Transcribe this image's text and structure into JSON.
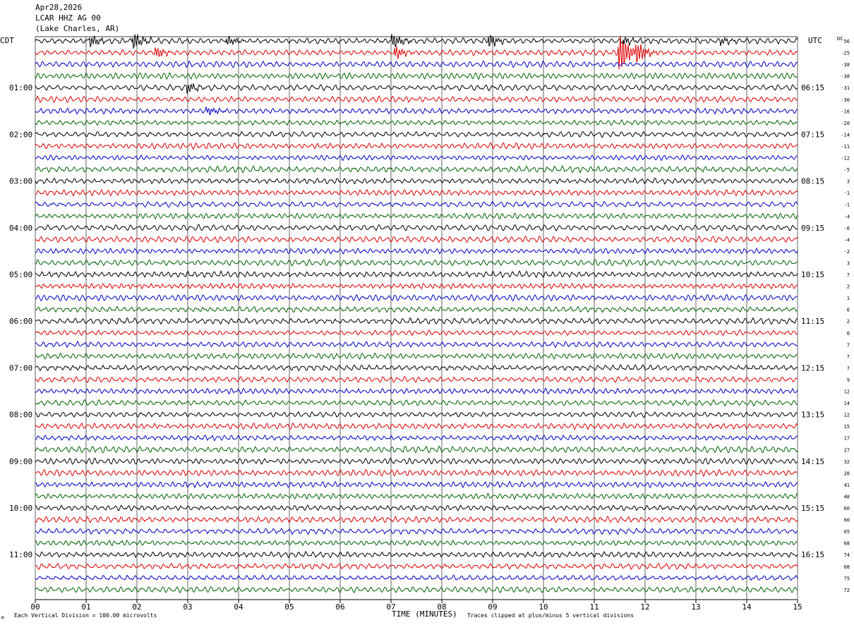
{
  "header": {
    "date": "Apr28,2026",
    "station": "LCAR HHZ AG 00",
    "location": "(Lake Charles, AR)"
  },
  "labels": {
    "left_tz": "CDT",
    "right_tz": "UTC",
    "dc_header": "DC",
    "xlabel": "TIME (MINUTES)",
    "footer_left": "Each Vertical Division = 100.00 microvolts",
    "footer_right": "Traces clipped at plus/minus 5 vertical divisions",
    "corner_mark": "M"
  },
  "colors": {
    "trace_cycle": [
      "#000000",
      "#e00000",
      "#0000c8",
      "#006400"
    ],
    "grid": "#000000",
    "background": "#ffffff"
  },
  "chart_data": {
    "type": "line",
    "subtype": "helicorder",
    "xlim": [
      0,
      15
    ],
    "x_ticks": [
      "00",
      "01",
      "02",
      "03",
      "04",
      "05",
      "06",
      "07",
      "08",
      "09",
      "10",
      "11",
      "12",
      "13",
      "14",
      "15"
    ],
    "xlabel": "TIME (MINUTES)",
    "rows": 48,
    "left_hour_labels": [
      {
        "row": 4,
        "label": "01:00"
      },
      {
        "row": 8,
        "label": "02:00"
      },
      {
        "row": 12,
        "label": "03:00"
      },
      {
        "row": 16,
        "label": "04:00"
      },
      {
        "row": 20,
        "label": "05:00"
      },
      {
        "row": 24,
        "label": "06:00"
      },
      {
        "row": 28,
        "label": "07:00"
      },
      {
        "row": 32,
        "label": "08:00"
      },
      {
        "row": 36,
        "label": "09:00"
      },
      {
        "row": 40,
        "label": "10:00"
      },
      {
        "row": 44,
        "label": "11:00"
      }
    ],
    "right_hour_labels": [
      {
        "row": 4,
        "label": "06:15"
      },
      {
        "row": 8,
        "label": "07:15"
      },
      {
        "row": 12,
        "label": "08:15"
      },
      {
        "row": 16,
        "label": "09:15"
      },
      {
        "row": 20,
        "label": "10:15"
      },
      {
        "row": 24,
        "label": "11:15"
      },
      {
        "row": 28,
        "label": "12:15"
      },
      {
        "row": 32,
        "label": "13:15"
      },
      {
        "row": 36,
        "label": "14:15"
      },
      {
        "row": 40,
        "label": "15:15"
      },
      {
        "row": 44,
        "label": "16:15"
      }
    ],
    "dc_offsets": [
      "56",
      "-25",
      "-38",
      "-38",
      "-31",
      "-30",
      "-16",
      "-20",
      "-14",
      "-11",
      "-12",
      "-5",
      "3",
      "-1",
      "-1",
      "-4",
      "-6",
      "-4",
      "-2",
      "3",
      "7",
      "2",
      "1",
      "6",
      "2",
      "0",
      "7",
      "7",
      "7",
      "9",
      "12",
      "14",
      "12",
      "15",
      "17",
      "27",
      "32",
      "28",
      "41",
      "48",
      "60",
      "60",
      "65",
      "68",
      "74",
      "68",
      "75",
      "72"
    ],
    "events": [
      {
        "row": 0,
        "minute": 1.1,
        "amp": 0.8
      },
      {
        "row": 0,
        "minute": 1.95,
        "amp": 1.0
      },
      {
        "row": 0,
        "minute": 3.8,
        "amp": 0.6
      },
      {
        "row": 0,
        "minute": 7.05,
        "amp": 0.9
      },
      {
        "row": 0,
        "minute": 8.95,
        "amp": 0.8
      },
      {
        "row": 0,
        "minute": 11.6,
        "amp": 0.5
      },
      {
        "row": 0,
        "minute": 13.5,
        "amp": 0.5
      },
      {
        "row": 1,
        "minute": 2.4,
        "amp": 0.7
      },
      {
        "row": 1,
        "minute": 7.1,
        "amp": 0.8
      },
      {
        "row": 1,
        "minute": 11.5,
        "amp": 3.0
      },
      {
        "row": 1,
        "minute": 11.85,
        "amp": 1.3
      },
      {
        "row": 4,
        "minute": 3.0,
        "amp": 0.7
      },
      {
        "row": 6,
        "minute": 3.4,
        "amp": 0.5
      }
    ]
  }
}
